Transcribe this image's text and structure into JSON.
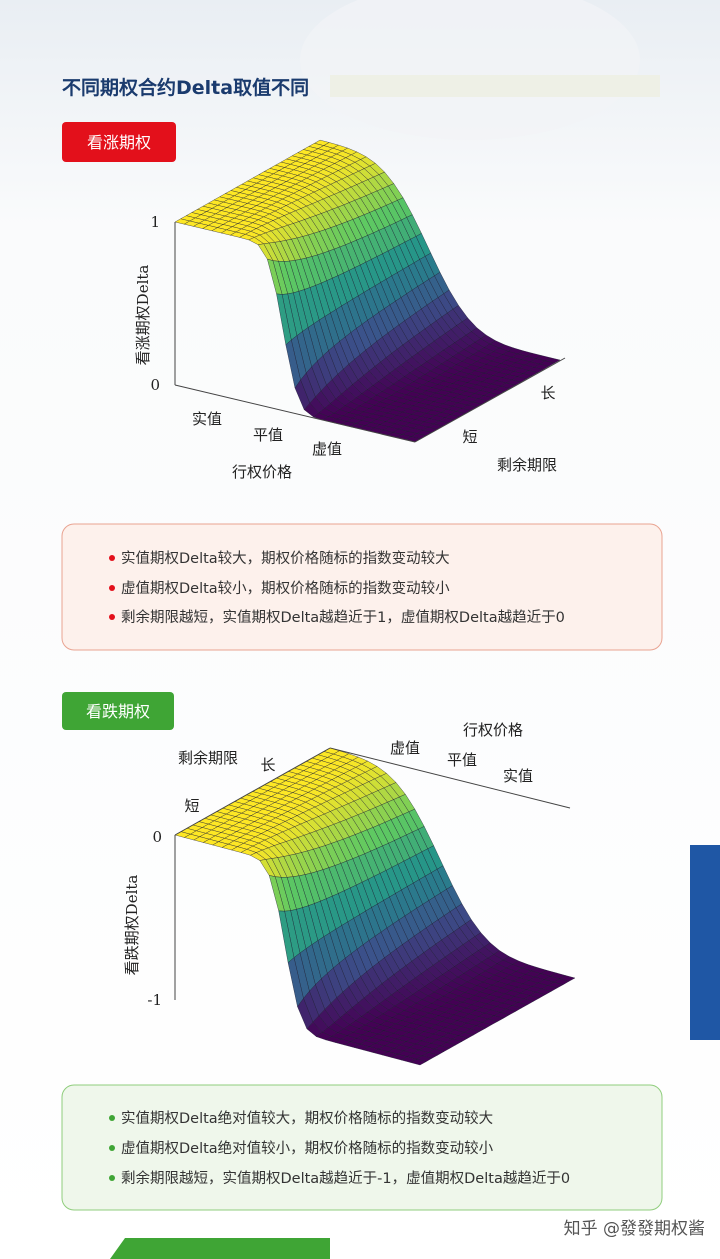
{
  "header": {
    "title": "不同期权合约Delta取值不同"
  },
  "sections": [
    {
      "badge": "看涨期权",
      "plot": {
        "z_label": "看涨期权Delta",
        "z_ticks": [
          1,
          0
        ],
        "x_label": "行权价格",
        "x_ticks": [
          "实值",
          "平值",
          "虚值"
        ],
        "y_label": "剩余期限",
        "y_ticks": [
          "短",
          "长"
        ]
      },
      "notes": [
        "实值期权Delta较大，期权价格随标的指数变动较大",
        "虚值期权Delta较小，期权价格随标的指数变动较小",
        "剩余期限越短，实值期权Delta越趋近于1，虚值期权Delta越趋近于0"
      ]
    },
    {
      "badge": "看跌期权",
      "plot": {
        "z_label": "看跌期权Delta",
        "z_ticks": [
          0,
          -1
        ],
        "x_label": "行权价格",
        "x_ticks": [
          "虚值",
          "平值",
          "实值"
        ],
        "y_label": "剩余期限",
        "y_ticks": [
          "短",
          "长"
        ]
      },
      "notes": [
        "实值期权Delta绝对值较大，期权价格随标的指数变动较大",
        "虚值期权Delta绝对值较小，期权价格随标的指数变动较小",
        "剩余期限越短，实值期权Delta越趋近于-1，虚值期权Delta越趋近于0"
      ]
    }
  ],
  "watermark": "知乎 @發發期权酱"
}
